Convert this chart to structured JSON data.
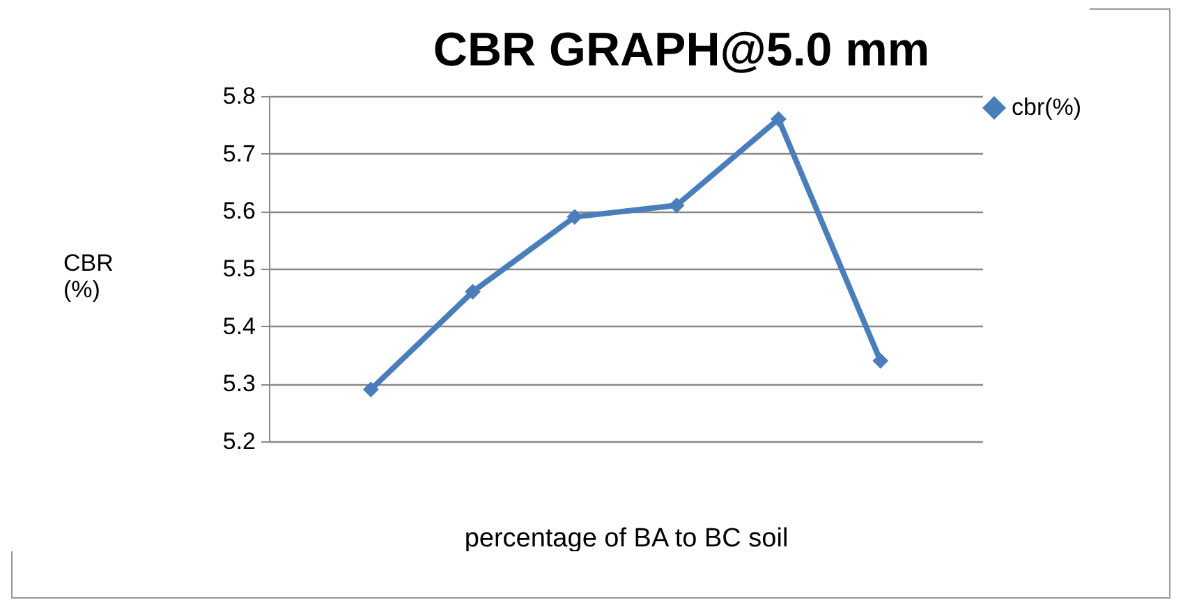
{
  "chart_data": {
    "type": "line",
    "title": "CBR GRAPH@5.0 mm",
    "xlabel": "percentage of BA to BC soil",
    "ylabel": "CBR (%)",
    "categories": [
      null,
      null,
      null,
      null,
      null,
      null
    ],
    "series": [
      {
        "name": "cbr(%)",
        "color": "#4a7ebb",
        "values": [
          5.29,
          5.46,
          5.59,
          5.61,
          5.76,
          5.34
        ]
      }
    ],
    "ylim": [
      5.2,
      5.8
    ],
    "yticks": [
      5.2,
      5.3,
      5.4,
      5.5,
      5.6,
      5.7,
      5.8
    ],
    "grid": "y",
    "legend": "right",
    "marker": "diamond",
    "tick_labels": "y"
  }
}
